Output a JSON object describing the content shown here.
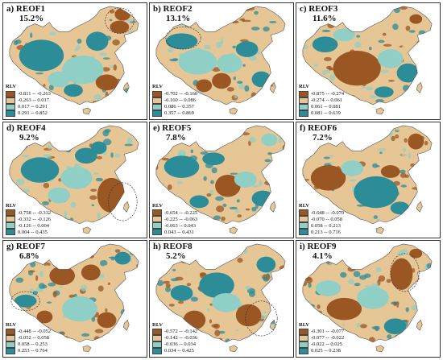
{
  "colors": {
    "c1": "#9a5623",
    "c2": "#e7c696",
    "c3": "#8fcfc6",
    "c4": "#2c8c97"
  },
  "panels": [
    {
      "title": "a) REOF1",
      "percent": "15.2%",
      "legend_title": "RLV",
      "ranges": [
        "-0.811 -- -0.263",
        "-0.263 -- 0.017",
        "0.017 -- 0.291",
        "0.291 -- 0.852"
      ]
    },
    {
      "title": "b) REOF2",
      "percent": "13.1%",
      "legend_title": "RLV",
      "ranges": [
        "-0.702 -- -0.160",
        "-0.160 -- 0.086",
        "0.086 -- 0.357",
        "0.357 -- 0.869"
      ]
    },
    {
      "title": "c) REOF3",
      "percent": "11.6%",
      "legend_title": "RLV",
      "ranges": [
        "-0.875 -- -0.274",
        "-0.274 -- 0.061",
        "0.061 -- 0.081",
        "0.081 -- 0.639"
      ]
    },
    {
      "title": "d) REOF4",
      "percent": "9.2%",
      "legend_title": "RLV",
      "ranges": [
        "-0.758 -- -0.332",
        "-0.332 -- -0.126",
        "-0.126 -- 0.004",
        "0.004 -- 0.435"
      ]
    },
    {
      "title": "e) REOF5",
      "percent": "7.8%",
      "legend_title": "RLV",
      "ranges": [
        "-0.654 -- -0.225",
        "-0.225 -- -0.063",
        "-0.063 -- 0.043",
        "0.043 -- 0.431"
      ]
    },
    {
      "title": "f) REOF6",
      "percent": "7.2%",
      "legend_title": "RLV",
      "ranges": [
        "-0.648 -- -0.070",
        "-0.070 -- 0.058",
        "0.058 -- 0.213",
        "0.213 -- 0.716"
      ]
    },
    {
      "title": "g) REOF7",
      "percent": "6.8%",
      "legend_title": "RLV",
      "ranges": [
        "-0.448 -- -0.052",
        "-0.052 -- 0.058",
        "0.058 -- 0.253",
        "0.253 -- 0.764"
      ]
    },
    {
      "title": "h) REOF8",
      "percent": "5.2%",
      "legend_title": "RLV",
      "ranges": [
        "-0.572 -- -0.142",
        "-0.142 -- -0.036",
        "-0.036 -- 0.034",
        "0.034 -- 0.425"
      ]
    },
    {
      "title": "i) REOF9",
      "percent": "4.1%",
      "legend_title": "RLV",
      "ranges": [
        "-0.301 -- -0.077",
        "-0.077 -- -0.022",
        "-0.022 -- 0.025",
        "0.025 -- 0.238"
      ]
    }
  ]
}
